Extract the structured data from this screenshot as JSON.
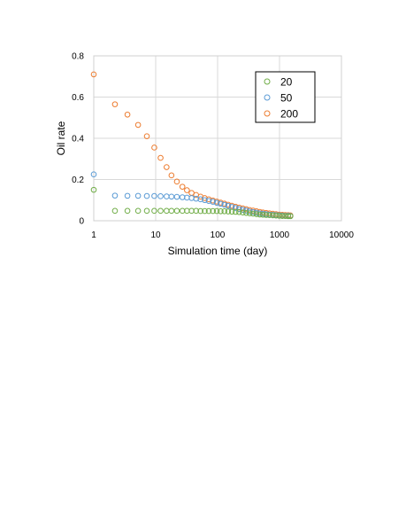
{
  "chart_data": {
    "type": "scatter",
    "title": "",
    "xlabel": "Simulation time (day)",
    "ylabel": "Oil rate",
    "xscale": "log",
    "xlim": [
      1,
      10000
    ],
    "ylim": [
      0,
      0.8
    ],
    "x_ticks": [
      "1",
      "10",
      "100",
      "1000",
      "10000"
    ],
    "y_ticks": [
      "0",
      "0.2",
      "0.4",
      "0.6",
      "0.8"
    ],
    "grid": true,
    "legend_position": "top-right",
    "series": [
      {
        "name": "20",
        "color": "#70ad47",
        "x": [
          1,
          2.2,
          3.5,
          5.2,
          7.2,
          9.5,
          12,
          15,
          18,
          22,
          27,
          32,
          38,
          45,
          53,
          62,
          72,
          84,
          97,
          112,
          129,
          148,
          170,
          195,
          223,
          255,
          290,
          330,
          375,
          425,
          480,
          540,
          610,
          690,
          780,
          880,
          990,
          1110,
          1240,
          1380,
          1500
        ],
        "y": [
          0.15,
          0.048,
          0.048,
          0.048,
          0.048,
          0.048,
          0.048,
          0.048,
          0.048,
          0.048,
          0.048,
          0.048,
          0.048,
          0.048,
          0.047,
          0.047,
          0.047,
          0.047,
          0.047,
          0.046,
          0.046,
          0.045,
          0.044,
          0.043,
          0.042,
          0.04,
          0.038,
          0.036,
          0.034,
          0.032,
          0.03,
          0.029,
          0.028,
          0.027,
          0.026,
          0.025,
          0.024,
          0.023,
          0.023,
          0.022,
          0.022
        ]
      },
      {
        "name": "50",
        "color": "#5b9bd5",
        "x": [
          1,
          2.2,
          3.5,
          5.2,
          7.2,
          9.5,
          12,
          15,
          18,
          22,
          27,
          32,
          38,
          45,
          53,
          62,
          72,
          84,
          97,
          112,
          129,
          148,
          170,
          195,
          223,
          255,
          290,
          330,
          375,
          425,
          480,
          540,
          610,
          690,
          780,
          880,
          990,
          1110,
          1240,
          1380,
          1500
        ],
        "y": [
          0.225,
          0.122,
          0.121,
          0.121,
          0.12,
          0.12,
          0.119,
          0.118,
          0.117,
          0.116,
          0.114,
          0.112,
          0.11,
          0.107,
          0.104,
          0.1,
          0.096,
          0.092,
          0.087,
          0.082,
          0.077,
          0.072,
          0.067,
          0.062,
          0.057,
          0.053,
          0.049,
          0.045,
          0.042,
          0.039,
          0.036,
          0.034,
          0.032,
          0.03,
          0.029,
          0.027,
          0.026,
          0.025,
          0.024,
          0.024,
          0.023
        ]
      },
      {
        "name": "200",
        "color": "#ed7d31",
        "x": [
          1,
          2.2,
          3.5,
          5.2,
          7.2,
          9.5,
          12,
          15,
          18,
          22,
          27,
          32,
          38,
          45,
          53,
          62,
          72,
          84,
          97,
          112,
          129,
          148,
          170,
          195,
          223,
          255,
          290,
          330,
          375,
          425,
          480,
          540,
          610,
          690,
          780,
          880,
          990,
          1110,
          1240,
          1380,
          1500
        ],
        "y": [
          0.71,
          0.565,
          0.515,
          0.465,
          0.41,
          0.355,
          0.305,
          0.26,
          0.22,
          0.19,
          0.165,
          0.148,
          0.135,
          0.125,
          0.117,
          0.11,
          0.104,
          0.098,
          0.093,
          0.088,
          0.083,
          0.078,
          0.073,
          0.068,
          0.064,
          0.06,
          0.056,
          0.052,
          0.049,
          0.046,
          0.043,
          0.04,
          0.038,
          0.036,
          0.034,
          0.032,
          0.03,
          0.029,
          0.028,
          0.027,
          0.026
        ]
      }
    ]
  }
}
